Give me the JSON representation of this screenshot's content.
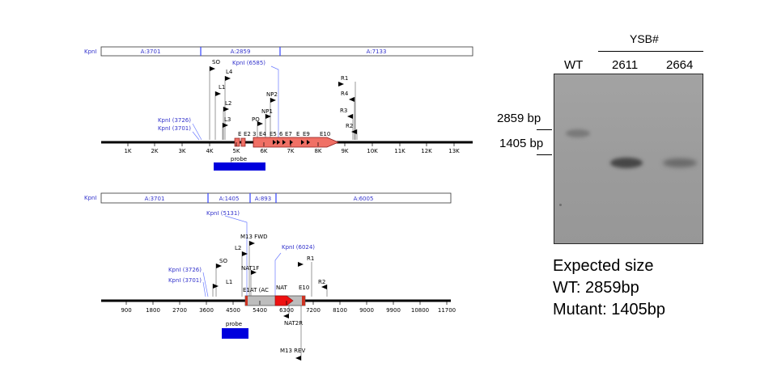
{
  "map_top": {
    "enzyme": "KpnI",
    "fragments": [
      "A:3701",
      "A:2859",
      "A:7133"
    ],
    "site_labels": [
      "KpnI (3726)",
      "KpnI (3701)",
      "KpnI (6585)"
    ],
    "primers": [
      "SO",
      "L4",
      "L1",
      "L2",
      "L3",
      "PO",
      "NP1",
      "NP2",
      "R1",
      "R4",
      "R3",
      "R2"
    ],
    "exons": [
      "E",
      "E2",
      "3",
      "E4",
      "E5",
      "6",
      "E7",
      "E",
      "E9",
      "E10"
    ],
    "axis": [
      "1K",
      "2K",
      "3K",
      "4K",
      "5K",
      "6K",
      "7K",
      "8K",
      "9K",
      "10K",
      "11K",
      "12K",
      "13K"
    ],
    "probe": "probe"
  },
  "map_bottom": {
    "enzyme": "KpnI",
    "fragments": [
      "A:3701",
      "A:1405",
      "A:893",
      "A:6005"
    ],
    "site_labels": [
      "KpnI (5131)",
      "KpnI (3726)",
      "KpnI (3701)",
      "KpnI (6024)"
    ],
    "primers": [
      "M13 FWD",
      "L2",
      "NAT1F",
      "SO",
      "L1",
      "R1",
      "R2",
      "NAT2R",
      "M13 REV"
    ],
    "cassette": [
      "E1AT (AC",
      "NAT",
      "E10"
    ],
    "axis": [
      "900",
      "1800",
      "2700",
      "3600",
      "4500",
      "5400",
      "6300",
      "7200",
      "8100",
      "9000",
      "9900",
      "10800",
      "11700"
    ],
    "probe": "probe"
  },
  "blot": {
    "group_label": "YSB#",
    "lanes": [
      "WT",
      "2611",
      "2664"
    ],
    "markers": [
      "2859 bp",
      "1405 bp"
    ]
  },
  "expected": {
    "line1": "Expected size",
    "line2": "WT: 2859bp",
    "line3": "Mutant: 1405bp"
  }
}
